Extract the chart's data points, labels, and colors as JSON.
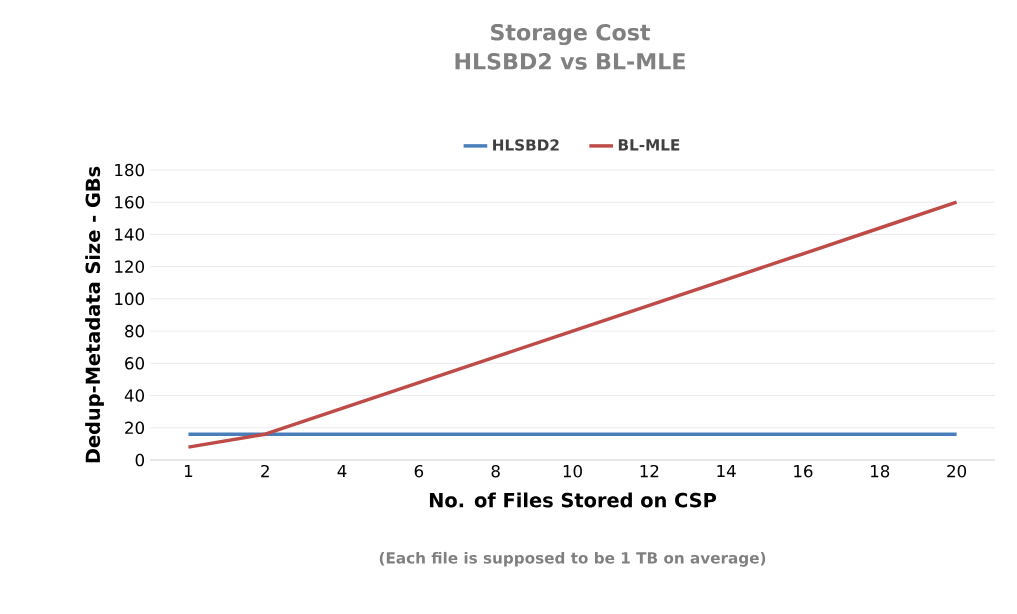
{
  "chart_data": {
    "type": "line",
    "title": "Storage Cost\nHLSBD2 vs BL-MLE",
    "xlabel": "No. of Files Stored on CSP",
    "ylabel": "Dedup-Metadata Size - GBs",
    "annotations": [
      "(Each file is supposed to be 1 TB on average)"
    ],
    "categories": [
      "1",
      "2",
      "4",
      "6",
      "8",
      "10",
      "12",
      "14",
      "16",
      "18",
      "20"
    ],
    "series": [
      {
        "name": "HLSBD2",
        "color": "#4a7ebb",
        "values": [
          16,
          16,
          16,
          16,
          16,
          16,
          16,
          16,
          16,
          16,
          16
        ]
      },
      {
        "name": "BL-MLE",
        "color": "#be4b48",
        "values": [
          8,
          16,
          32,
          48,
          64,
          80,
          96,
          112,
          128,
          144,
          160
        ]
      }
    ],
    "ylim": [
      0,
      180
    ],
    "yticks": [
      0,
      20,
      40,
      60,
      80,
      100,
      120,
      140,
      160,
      180
    ],
    "grid": "y",
    "legend": "top"
  }
}
